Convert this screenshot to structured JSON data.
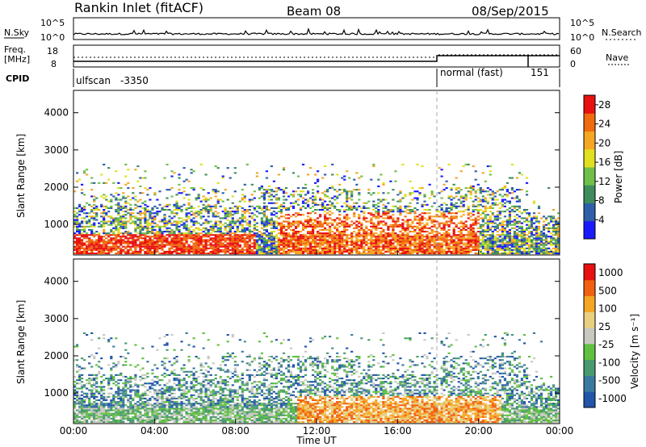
{
  "header": {
    "station": "Rankin Inlet (fitACF)",
    "beam": "Beam 08",
    "date": "08/Sep/2015"
  },
  "top_panels": {
    "nsky_label": "N.Sky",
    "nsky_ticks": [
      "10^5",
      "10^0"
    ],
    "nsearch_label": "N.Search",
    "freq_label": "Freq.",
    "freq_unit": "[MHz]",
    "freq_ticks": [
      "18",
      "8"
    ],
    "nave_label": "Nave",
    "nave_ticks": [
      "60",
      "0"
    ],
    "cpid_label": "CPID",
    "cpid_segments": [
      {
        "name": "ulfscan",
        "id": "-3350",
        "start_hour": 0
      },
      {
        "name": "normal (fast)",
        "id": "151",
        "start_hour": 18
      }
    ]
  },
  "chart_data": [
    {
      "type": "heatmap",
      "name": "Power",
      "ylabel": "Slant Range [km]",
      "yticks": [
        1000,
        2000,
        3000,
        4000
      ],
      "ylim": [
        180,
        4600
      ],
      "xlim": [
        0,
        24
      ],
      "colorbar_label": "Power [dB]",
      "colorbar_ticks": [
        4,
        8,
        12,
        16,
        20,
        24,
        28
      ],
      "colorbar_range": [
        0,
        30
      ],
      "colors": [
        "#1a1aff",
        "#2e5fa8",
        "#3f8c5c",
        "#6fbf4a",
        "#e0e020",
        "#f5a623",
        "#f06a10",
        "#e81010"
      ]
    },
    {
      "type": "heatmap",
      "name": "Velocity",
      "ylabel": "Slant Range [km]",
      "yticks": [
        1000,
        2000,
        3000,
        4000
      ],
      "ylim": [
        180,
        4600
      ],
      "xlim": [
        0,
        24
      ],
      "colorbar_label": "Velocity [m s⁻¹]",
      "colorbar_ticks": [
        "1000",
        "500",
        "100",
        "25",
        "-25",
        "-100",
        "-500",
        "-1000"
      ],
      "colors": [
        "#2255aa",
        "#3a7aa0",
        "#4a9a70",
        "#60c040",
        "#c8c8c0",
        "#e8d080",
        "#f5a623",
        "#f06010",
        "#e81010"
      ]
    }
  ],
  "xaxis": {
    "ticks": [
      "00:00",
      "04:00",
      "08:00",
      "12:00",
      "16:00",
      "20:00",
      "00:00"
    ],
    "label": "Time UT"
  }
}
